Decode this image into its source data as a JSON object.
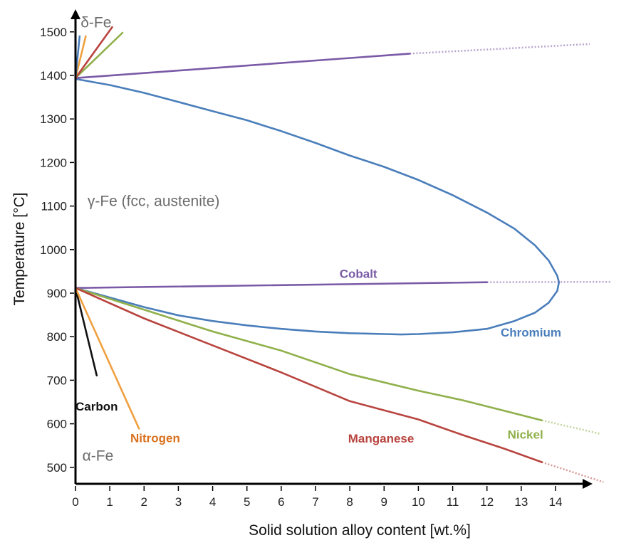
{
  "chart_data": {
    "type": "line",
    "title": "",
    "xlabel": "Solid solution alloy content [wt.%]",
    "ylabel": "Temperature  [°C]",
    "xlim": [
      0,
      15.3
    ],
    "ylim": [
      470,
      1540
    ],
    "x_ticks": [
      0,
      1,
      2,
      3,
      4,
      5,
      6,
      7,
      8,
      9,
      10,
      11,
      12,
      13,
      14
    ],
    "y_ticks": [
      500,
      600,
      700,
      800,
      900,
      1000,
      1100,
      1200,
      1300,
      1400,
      1500
    ],
    "grid": false,
    "legend": "none (inline labels)",
    "phase_labels": [
      {
        "text": "δ-Fe",
        "x": 0.15,
        "y": 1510
      },
      {
        "text": "γ-Fe (fcc, austenite)",
        "x": 0.35,
        "y": 1100
      },
      {
        "text": "α-Fe",
        "x": 0.2,
        "y": 515
      }
    ],
    "series": [
      {
        "name": "Chromium",
        "color": "#4a7ebb",
        "label": {
          "text": "Chromium",
          "x": 12.4,
          "y": 800
        },
        "segments": [
          {
            "style": "solid",
            "points": [
              [
                0,
                1392
              ],
              [
                1,
                1378
              ],
              [
                2,
                1360
              ],
              [
                3,
                1339
              ],
              [
                4,
                1318
              ],
              [
                5,
                1297
              ],
              [
                6,
                1272
              ],
              [
                7,
                1245
              ],
              [
                8,
                1216
              ],
              [
                9,
                1190
              ],
              [
                10,
                1160
              ],
              [
                11,
                1125
              ],
              [
                12,
                1085
              ],
              [
                12.8,
                1048
              ],
              [
                13.4,
                1010
              ],
              [
                13.8,
                975
              ],
              [
                14.05,
                940
              ],
              [
                14.1,
                925
              ],
              [
                14.05,
                905
              ],
              [
                13.8,
                878
              ],
              [
                13.4,
                855
              ],
              [
                12.8,
                836
              ],
              [
                12,
                818
              ],
              [
                11,
                810
              ],
              [
                10,
                806
              ],
              [
                9.5,
                805
              ],
              [
                9,
                806
              ],
              [
                8,
                808
              ],
              [
                7,
                812
              ],
              [
                6,
                818
              ],
              [
                5,
                826
              ],
              [
                4,
                836
              ],
              [
                3,
                849
              ],
              [
                2,
                868
              ],
              [
                1,
                890
              ],
              [
                0,
                912
              ]
            ]
          }
        ]
      },
      {
        "name": "Cobalt",
        "color": "#7a5aa6",
        "label": {
          "text": "Cobalt",
          "x": 7.7,
          "y": 935
        },
        "segments": [
          {
            "style": "solid",
            "points": [
              [
                0,
                912
              ],
              [
                12,
                925
              ]
            ]
          },
          {
            "style": "dotted",
            "points": [
              [
                12,
                925
              ],
              [
                15.6,
                926
              ]
            ]
          },
          {
            "style": "solid",
            "points": [
              [
                0,
                1394
              ],
              [
                9.75,
                1450
              ]
            ]
          },
          {
            "style": "dotted",
            "points": [
              [
                9.75,
                1450
              ],
              [
                15.0,
                1472
              ]
            ]
          }
        ]
      },
      {
        "name": "Nickel",
        "color": "#8fb04a",
        "label": {
          "text": "Nickel",
          "x": 12.6,
          "y": 566
        },
        "segments": [
          {
            "style": "solid",
            "points": [
              [
                0,
                912
              ],
              [
                2,
                862
              ],
              [
                4,
                812
              ],
              [
                6,
                768
              ],
              [
                8,
                714
              ],
              [
                10,
                676
              ],
              [
                11.3,
                654
              ],
              [
                12.5,
                630
              ],
              [
                13.6,
                608
              ]
            ]
          },
          {
            "style": "dotted",
            "points": [
              [
                13.6,
                608
              ],
              [
                15.3,
                577
              ]
            ]
          },
          {
            "style": "solid",
            "points": [
              [
                0,
                1394
              ],
              [
                1.37,
                1498
              ]
            ]
          }
        ]
      },
      {
        "name": "Manganese",
        "color": "#b8443f",
        "label": {
          "text": "Manganese",
          "x": 7.95,
          "y": 557
        },
        "segments": [
          {
            "style": "solid",
            "points": [
              [
                0,
                912
              ],
              [
                2,
                842
              ],
              [
                4,
                780
              ],
              [
                6,
                718
              ],
              [
                8,
                652
              ],
              [
                10,
                610
              ],
              [
                11.3,
                574
              ],
              [
                12.5,
                543
              ],
              [
                13.6,
                512
              ]
            ]
          },
          {
            "style": "dotted",
            "points": [
              [
                13.6,
                512
              ],
              [
                15.4,
                466
              ]
            ]
          },
          {
            "style": "solid",
            "points": [
              [
                0,
                1394
              ],
              [
                1.07,
                1511
              ]
            ]
          }
        ]
      },
      {
        "name": "Carbon",
        "color": "#111111",
        "label": {
          "text": "Carbon",
          "x": 0.0,
          "y": 630
        },
        "segments": [
          {
            "style": "solid",
            "points": [
              [
                0,
                912
              ],
              [
                0.62,
                711
              ]
            ]
          }
        ]
      },
      {
        "name": "Nitrogen",
        "color": "#f0a040",
        "label": {
          "text": "Nitrogen",
          "x": 1.6,
          "y": 558
        },
        "label_color": "#d9721f",
        "segments": [
          {
            "style": "solid",
            "points": [
              [
                0,
                912
              ],
              [
                1.85,
                589
              ]
            ]
          },
          {
            "style": "solid",
            "points": [
              [
                0,
                1394
              ],
              [
                0.3,
                1490
              ]
            ]
          }
        ]
      },
      {
        "name": "Chromium (δ)",
        "color": "#4a7ebb",
        "segments": [
          {
            "style": "solid",
            "points": [
              [
                0,
                1394
              ],
              [
                0.12,
                1490
              ]
            ]
          }
        ]
      }
    ]
  }
}
